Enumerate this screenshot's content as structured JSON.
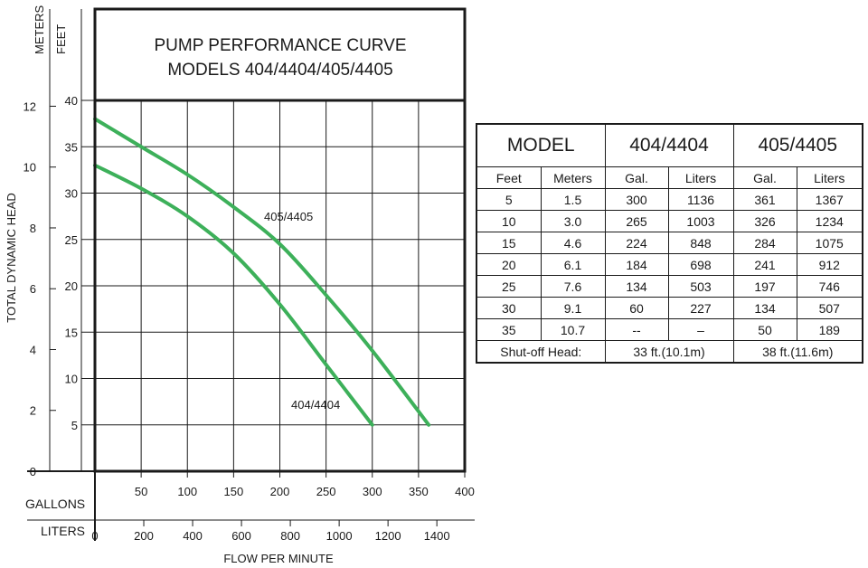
{
  "chart_data": {
    "type": "line",
    "title_line1": "PUMP PERFORMANCE CURVE",
    "title_line2": "MODELS 404/4404/405/4405",
    "ylabel": "TOTAL DYNAMIC HEAD",
    "ylabel_meters": "METERS",
    "ylabel_feet": "FEET",
    "xlabel": "FLOW PER MINUTE",
    "xlabel_gallons": "GALLONS",
    "xlabel_liters": "LITERS",
    "feet_ticks": [
      "40",
      "35",
      "30",
      "25",
      "20",
      "15",
      "10",
      "5"
    ],
    "meter_ticks": [
      "12",
      "10",
      "8",
      "6",
      "4",
      "2",
      "0"
    ],
    "gallon_ticks": [
      "50",
      "100",
      "150",
      "200",
      "250",
      "300",
      "350",
      "400"
    ],
    "liter_ticks": [
      "0",
      "200",
      "400",
      "600",
      "800",
      "1000",
      "1200",
      "1400"
    ],
    "xlim_gal": [
      0,
      400
    ],
    "ylim_ft": [
      0,
      40
    ],
    "grid": true,
    "line_color": "#3db05a",
    "series": [
      {
        "name": "405/4405",
        "x": [
          0,
          50,
          100,
          150,
          200,
          250,
          300,
          361
        ],
        "y": [
          38,
          35,
          32,
          28.5,
          24.5,
          19,
          13,
          5
        ]
      },
      {
        "name": "404/4404",
        "x": [
          0,
          50,
          100,
          150,
          200,
          250,
          300
        ],
        "y": [
          33,
          30.5,
          27.5,
          23.5,
          18,
          11.5,
          5
        ]
      }
    ]
  },
  "table": {
    "model_label": "MODEL",
    "model_a": "404/4404",
    "model_b": "405/4405",
    "col_feet": "Feet",
    "col_meters": "Meters",
    "col_gal_a": "Gal.",
    "col_liters_a": "Liters",
    "col_gal_b": "Gal.",
    "col_liters_b": "Liters",
    "rows": [
      [
        "5",
        "1.5",
        "300",
        "1136",
        "361",
        "1367"
      ],
      [
        "10",
        "3.0",
        "265",
        "1003",
        "326",
        "1234"
      ],
      [
        "15",
        "4.6",
        "224",
        "848",
        "284",
        "1075"
      ],
      [
        "20",
        "6.1",
        "184",
        "698",
        "241",
        "912"
      ],
      [
        "25",
        "7.6",
        "134",
        "503",
        "197",
        "746"
      ],
      [
        "30",
        "9.1",
        "60",
        "227",
        "134",
        "507"
      ],
      [
        "35",
        "10.7",
        "--",
        "–",
        "50",
        "189"
      ]
    ],
    "shutoff_label": "Shut-off Head:",
    "shutoff_a": "33 ft.(10.1m)",
    "shutoff_b": "38 ft.(11.6m)"
  }
}
